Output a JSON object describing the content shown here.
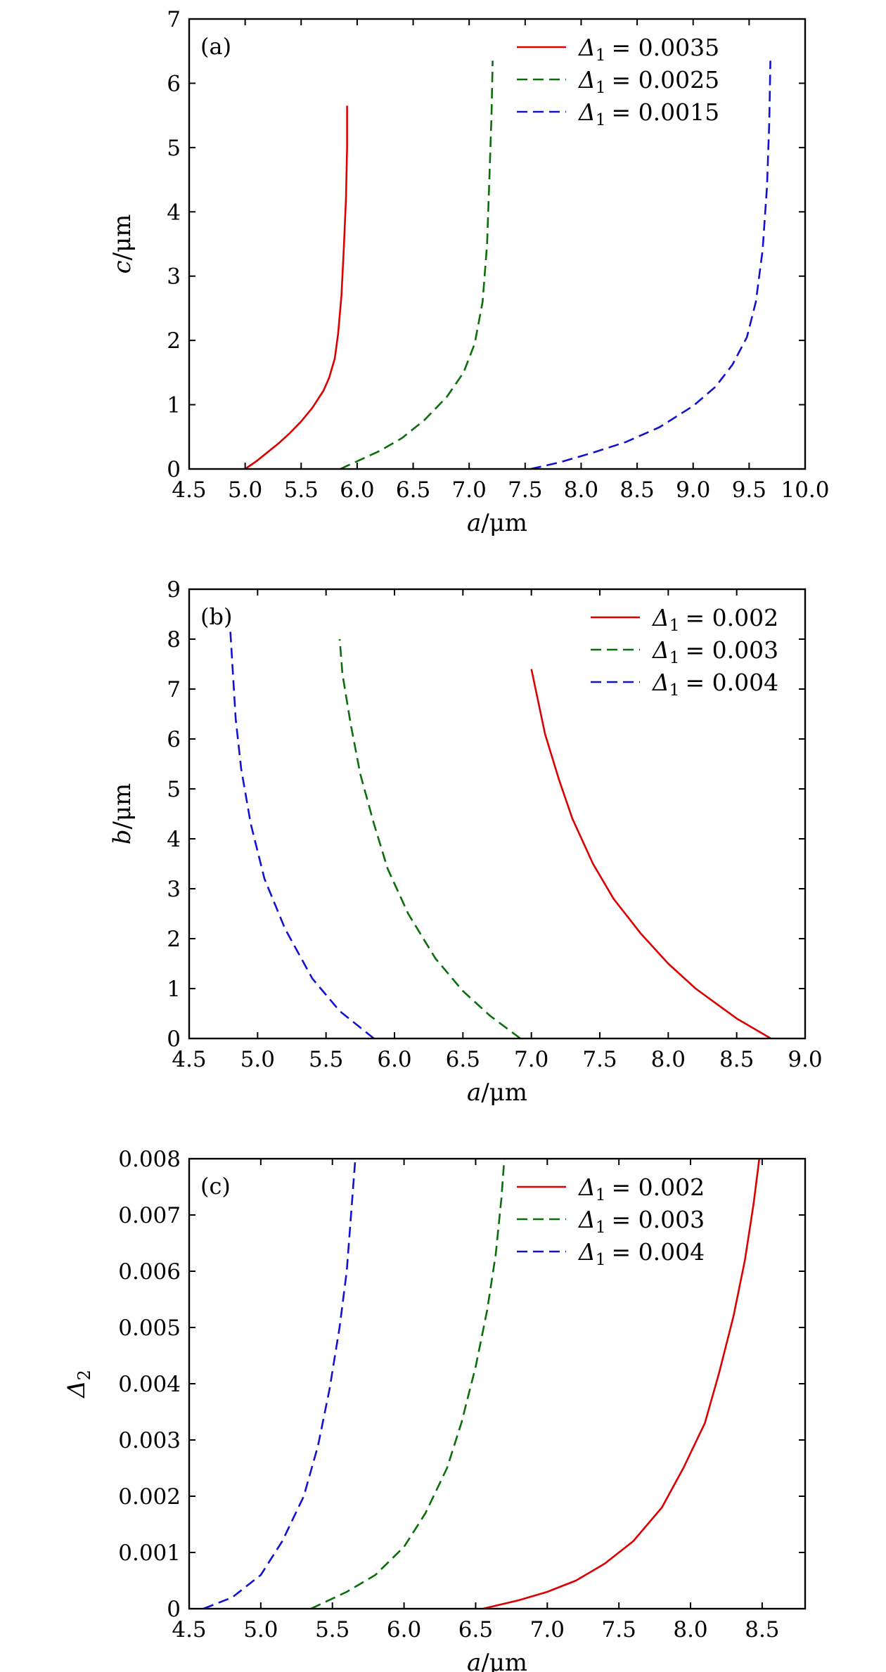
{
  "colors": {
    "red": "#dd0000",
    "green": "#0a6e0a",
    "blue": "#1212d0",
    "axis": "#000000"
  },
  "panels": [
    {
      "tag": "(a)",
      "xlabel": {
        "var": "a",
        "unit": "/μm"
      },
      "ylabel": {
        "var": "c",
        "unit": "/μm"
      },
      "xticks": [
        "4.5",
        "5.0",
        "5.5",
        "6.0",
        "6.5",
        "7.0",
        "7.5",
        "8.0",
        "8.5",
        "9.0",
        "9.5",
        "10.0"
      ],
      "yticks": [
        "0",
        "1",
        "2",
        "3",
        "4",
        "5",
        "6",
        "7"
      ],
      "legend": [
        "= 0.0035",
        "= 0.0025",
        "= 0.0015"
      ],
      "legend_symbol": "Δ",
      "legend_sub": "1"
    },
    {
      "tag": "(b)",
      "xlabel": {
        "var": "a",
        "unit": "/μm"
      },
      "ylabel": {
        "var": "b",
        "unit": "/μm"
      },
      "xticks": [
        "4.5",
        "5.0",
        "5.5",
        "6.0",
        "6.5",
        "7.0",
        "7.5",
        "8.0",
        "8.5",
        "9.0"
      ],
      "yticks": [
        "0",
        "1",
        "2",
        "3",
        "4",
        "5",
        "6",
        "7",
        "8",
        "9"
      ],
      "legend": [
        "= 0.002",
        "= 0.003",
        "= 0.004"
      ],
      "legend_symbol": "Δ",
      "legend_sub": "1"
    },
    {
      "tag": "(c)",
      "xlabel": {
        "var": "a",
        "unit": "/μm"
      },
      "ylabel": {
        "var": "Δ",
        "sub": "2"
      },
      "xticks": [
        "4.5",
        "5.0",
        "5.5",
        "6.0",
        "6.5",
        "7.0",
        "7.5",
        "8.0",
        "8.5"
      ],
      "yticks": [
        "0",
        "0.001",
        "0.002",
        "0.003",
        "0.004",
        "0.005",
        "0.006",
        "0.007",
        "0.008"
      ],
      "legend": [
        "= 0.002",
        "= 0.003",
        "= 0.004"
      ],
      "legend_symbol": "Δ",
      "legend_sub": "1"
    }
  ],
  "chart_data": [
    {
      "type": "line",
      "title": "(a)",
      "xlabel": "a/μm",
      "ylabel": "c/μm",
      "xlim": [
        4.5,
        10.0
      ],
      "ylim": [
        0,
        7
      ],
      "grid": false,
      "legend_position": "top-right",
      "series": [
        {
          "name": "Δ1 = 0.0035",
          "color": "red",
          "style": "solid",
          "x": [
            5.0,
            5.1,
            5.2,
            5.3,
            5.4,
            5.5,
            5.6,
            5.7,
            5.75,
            5.8,
            5.83,
            5.86,
            5.88,
            5.9,
            5.91,
            5.91
          ],
          "y": [
            0.0,
            0.12,
            0.26,
            0.4,
            0.56,
            0.74,
            0.95,
            1.22,
            1.42,
            1.72,
            2.1,
            2.7,
            3.4,
            4.2,
            5.0,
            5.65
          ]
        },
        {
          "name": "Δ1 = 0.0025",
          "color": "green",
          "style": "dashed",
          "x": [
            5.85,
            6.0,
            6.2,
            6.4,
            6.6,
            6.8,
            6.95,
            7.05,
            7.12,
            7.16,
            7.18,
            7.2,
            7.21
          ],
          "y": [
            0.0,
            0.12,
            0.28,
            0.48,
            0.76,
            1.12,
            1.5,
            1.95,
            2.6,
            3.5,
            4.5,
            5.5,
            6.35
          ]
        },
        {
          "name": "Δ1 = 0.0015",
          "color": "blue",
          "style": "dashed",
          "x": [
            7.55,
            7.8,
            8.1,
            8.4,
            8.7,
            9.0,
            9.2,
            9.35,
            9.48,
            9.56,
            9.62,
            9.66,
            9.68,
            9.69
          ],
          "y": [
            0.0,
            0.1,
            0.25,
            0.42,
            0.65,
            0.98,
            1.28,
            1.62,
            2.05,
            2.6,
            3.4,
            4.4,
            5.4,
            6.35
          ]
        }
      ]
    },
    {
      "type": "line",
      "title": "(b)",
      "xlabel": "a/μm",
      "ylabel": "b/μm",
      "xlim": [
        4.5,
        9.0
      ],
      "ylim": [
        0,
        9
      ],
      "grid": false,
      "legend_position": "top-right",
      "series": [
        {
          "name": "Δ1 = 0.002",
          "color": "red",
          "style": "solid",
          "x": [
            8.75,
            8.5,
            8.2,
            8.0,
            7.8,
            7.6,
            7.45,
            7.3,
            7.2,
            7.1,
            7.0
          ],
          "y": [
            0.0,
            0.4,
            1.0,
            1.5,
            2.1,
            2.8,
            3.5,
            4.4,
            5.2,
            6.1,
            7.4
          ]
        },
        {
          "name": "Δ1 = 0.003",
          "color": "green",
          "style": "dashed",
          "x": [
            6.92,
            6.7,
            6.5,
            6.3,
            6.1,
            5.95,
            5.85,
            5.75,
            5.68,
            5.62,
            5.6
          ],
          "y": [
            0.0,
            0.45,
            0.95,
            1.6,
            2.5,
            3.4,
            4.3,
            5.3,
            6.3,
            7.3,
            8.0
          ]
        },
        {
          "name": "Δ1 = 0.004",
          "color": "blue",
          "style": "dashed",
          "x": [
            5.85,
            5.6,
            5.4,
            5.2,
            5.05,
            4.95,
            4.88,
            4.84,
            4.82,
            4.8
          ],
          "y": [
            0.0,
            0.55,
            1.2,
            2.2,
            3.2,
            4.3,
            5.4,
            6.4,
            7.3,
            8.2
          ]
        }
      ]
    },
    {
      "type": "line",
      "title": "(c)",
      "xlabel": "a/μm",
      "ylabel": "Δ2",
      "xlim": [
        4.5,
        8.8
      ],
      "ylim": [
        0,
        0.008
      ],
      "grid": false,
      "legend_position": "top-right",
      "series": [
        {
          "name": "Δ1 = 0.002",
          "color": "red",
          "style": "solid",
          "x": [
            6.55,
            6.8,
            7.0,
            7.2,
            7.4,
            7.6,
            7.8,
            7.95,
            8.1,
            8.2,
            8.3,
            8.38,
            8.44,
            8.48
          ],
          "y": [
            0.0,
            0.00015,
            0.0003,
            0.0005,
            0.0008,
            0.0012,
            0.0018,
            0.0025,
            0.0033,
            0.0042,
            0.0052,
            0.0062,
            0.0072,
            0.008
          ]
        },
        {
          "name": "Δ1 = 0.003",
          "color": "green",
          "style": "dashed",
          "x": [
            5.35,
            5.6,
            5.8,
            6.0,
            6.15,
            6.3,
            6.4,
            6.5,
            6.58,
            6.64,
            6.68,
            6.7
          ],
          "y": [
            0.0,
            0.0003,
            0.0006,
            0.0011,
            0.0017,
            0.0025,
            0.0033,
            0.0043,
            0.0053,
            0.0063,
            0.0073,
            0.008
          ]
        },
        {
          "name": "Δ1 = 0.004",
          "color": "blue",
          "style": "dashed",
          "x": [
            4.6,
            4.8,
            5.0,
            5.15,
            5.3,
            5.4,
            5.48,
            5.55,
            5.6,
            5.63,
            5.66
          ],
          "y": [
            0.0,
            0.0002,
            0.0006,
            0.0012,
            0.002,
            0.0029,
            0.0039,
            0.005,
            0.006,
            0.007,
            0.008
          ]
        }
      ]
    }
  ]
}
